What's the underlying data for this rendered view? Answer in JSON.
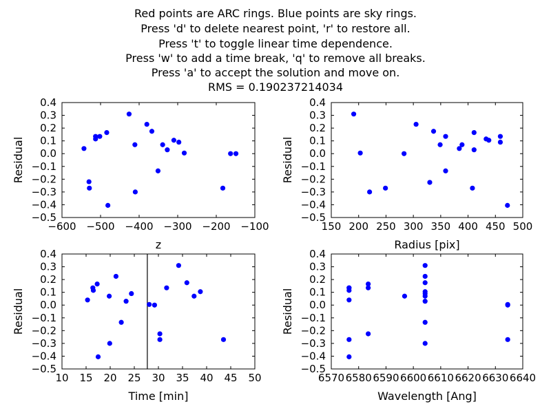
{
  "title_lines": [
    "Red points are ARC rings. Blue points are sky rings.",
    "Press 'd' to delete nearest point, 'r' to restore all.",
    "Press 't' to toggle linear time dependence.",
    "Press 'w' to add a time break, 'q' to remove all breaks.",
    "Press 'a' to accept the solution and move on.",
    "RMS = 0.190237214034"
  ],
  "colors": {
    "point": "#0000ff",
    "axes": "#000000",
    "background": "#ffffff"
  },
  "chart_data": [
    {
      "type": "scatter",
      "xlabel": "z",
      "ylabel": "Residual",
      "xlim": [
        -600,
        -100
      ],
      "ylim": [
        -0.5,
        0.4
      ],
      "xticks": [
        -600,
        -500,
        -400,
        -300,
        -200,
        -100
      ],
      "xtick_labels": [
        "−600",
        "−500",
        "−400",
        "−300",
        "−200",
        "−100"
      ],
      "yticks": [
        -0.5,
        -0.4,
        -0.3,
        -0.2,
        -0.1,
        0.0,
        0.1,
        0.2,
        0.3,
        0.4
      ],
      "ytick_labels": [
        "−0.5",
        "−0.4",
        "−0.3",
        "−0.2",
        "−0.1",
        "0.0",
        "0.1",
        "0.2",
        "0.3",
        "0.4"
      ],
      "series": [
        {
          "x": [
            -543,
            -530,
            -529,
            -513,
            -513,
            -502,
            -484,
            -481,
            -426,
            -411,
            -410,
            -380,
            -367,
            -351,
            -339,
            -327,
            -310,
            -297,
            -283,
            -183,
            -163,
            -149
          ],
          "y": [
            0.04,
            -0.22,
            -0.27,
            0.135,
            0.115,
            0.135,
            0.165,
            -0.405,
            0.31,
            0.07,
            -0.3,
            0.23,
            0.175,
            -0.135,
            0.07,
            0.03,
            0.105,
            0.09,
            0.005,
            -0.27,
            0.0,
            0.0
          ]
        }
      ]
    },
    {
      "type": "scatter",
      "xlabel": "Radius [pix]",
      "ylabel": "Residual",
      "xlim": [
        150,
        500
      ],
      "ylim": [
        -0.5,
        0.4
      ],
      "xticks": [
        150,
        200,
        250,
        300,
        350,
        400,
        450,
        500
      ],
      "xtick_labels": [
        "150",
        "200",
        "250",
        "300",
        "350",
        "400",
        "450",
        "500"
      ],
      "yticks": [
        -0.5,
        -0.4,
        -0.3,
        -0.2,
        -0.1,
        0.0,
        0.1,
        0.2,
        0.3,
        0.4
      ],
      "ytick_labels": [
        "−0.5",
        "−0.4",
        "−0.3",
        "−0.2",
        "−0.1",
        "0.0",
        "0.1",
        "0.2",
        "0.3",
        "0.4"
      ],
      "series": [
        {
          "x": [
            191,
            203,
            220,
            249,
            283,
            305,
            330,
            337,
            349,
            359,
            359,
            384,
            389,
            408,
            411,
            411,
            433,
            438,
            459,
            459,
            472
          ],
          "y": [
            0.31,
            0.005,
            -0.3,
            -0.27,
            0.0,
            0.23,
            -0.225,
            0.175,
            0.07,
            0.135,
            -0.135,
            0.04,
            0.07,
            -0.27,
            0.03,
            0.165,
            0.115,
            0.105,
            0.09,
            0.135,
            -0.405
          ]
        }
      ]
    },
    {
      "type": "scatter",
      "xlabel": "Time [min]",
      "ylabel": "Residual",
      "xlim": [
        10,
        50
      ],
      "ylim": [
        -0.5,
        0.4
      ],
      "xticks": [
        10,
        15,
        20,
        25,
        30,
        35,
        40,
        45,
        50
      ],
      "xtick_labels": [
        "10",
        "15",
        "20",
        "25",
        "30",
        "35",
        "40",
        "45",
        "50"
      ],
      "yticks": [
        -0.5,
        -0.4,
        -0.3,
        -0.2,
        -0.1,
        0.0,
        0.1,
        0.2,
        0.3,
        0.4
      ],
      "ytick_labels": [
        "−0.5",
        "−0.4",
        "−0.3",
        "−0.2",
        "−0.1",
        "0.0",
        "0.1",
        "0.2",
        "0.3",
        "0.4"
      ],
      "vertical_line_x": 27.7,
      "series": [
        {
          "x": [
            15.3,
            16.4,
            16.5,
            17.3,
            17.5,
            19.8,
            19.9,
            21.2,
            22.3,
            23.3,
            24.4,
            28.1,
            29.2,
            30.3,
            30.3,
            31.7,
            34.2,
            35.9,
            37.4,
            38.7,
            43.5
          ],
          "y": [
            0.04,
            0.135,
            0.115,
            0.165,
            -0.405,
            0.07,
            -0.3,
            0.225,
            -0.135,
            0.03,
            0.09,
            0.005,
            0.0,
            -0.225,
            -0.27,
            0.135,
            0.31,
            0.175,
            0.07,
            0.105,
            -0.27
          ]
        }
      ]
    },
    {
      "type": "scatter",
      "xlabel": "Wavelength [Ang]",
      "ylabel": "Residual",
      "xlim": [
        6570,
        6640
      ],
      "ylim": [
        -0.5,
        0.4
      ],
      "xticks": [
        6570,
        6580,
        6590,
        6600,
        6610,
        6620,
        6630,
        6640
      ],
      "xtick_labels": [
        "6570",
        "6580",
        "6590",
        "6600",
        "6610",
        "6620",
        "6630",
        "6640"
      ],
      "yticks": [
        -0.5,
        -0.4,
        -0.3,
        -0.2,
        -0.1,
        0.0,
        0.1,
        0.2,
        0.3,
        0.4
      ],
      "ytick_labels": [
        "−0.5",
        "−0.4",
        "−0.3",
        "−0.2",
        "−0.1",
        "0.0",
        "0.1",
        "0.2",
        "0.3",
        "0.4"
      ],
      "series": [
        {
          "x": [
            6576.5,
            6576.5,
            6576.5,
            6576.5,
            6576.5,
            6576.5,
            6583.5,
            6583.5,
            6583.5,
            6596.8,
            6604.3,
            6604.3,
            6604.3,
            6604.3,
            6604.3,
            6604.3,
            6604.3,
            6604.3,
            6604.3,
            6634.5,
            6634.5,
            6634.5
          ],
          "y": [
            0.135,
            0.115,
            0.04,
            -0.27,
            -0.405,
            0.135,
            0.165,
            0.135,
            -0.225,
            0.07,
            0.31,
            0.225,
            0.175,
            0.105,
            0.09,
            0.07,
            0.03,
            -0.135,
            -0.3,
            0.005,
            0.0,
            -0.27
          ]
        }
      ]
    }
  ]
}
